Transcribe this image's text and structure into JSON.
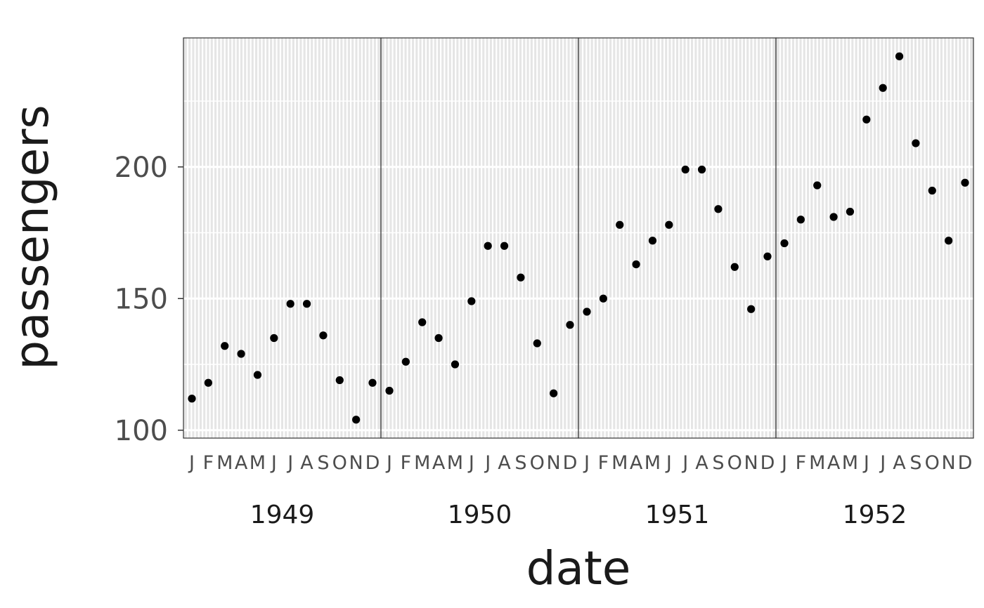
{
  "chart_data": {
    "type": "scatter",
    "title": "",
    "xlabel": "date",
    "ylabel": "passengers",
    "ylim": [
      97,
      249
    ],
    "yticks": [
      100,
      150,
      200
    ],
    "yticks_labels": [
      "100",
      "150",
      "200"
    ],
    "month_labels": [
      "J",
      "F",
      "M",
      "A",
      "M",
      "J",
      "J",
      "A",
      "S",
      "O",
      "N",
      "D"
    ],
    "years": [
      "1949",
      "1950",
      "1951",
      "1952"
    ],
    "grid": true,
    "facets": [
      {
        "year": "1949",
        "values": [
          112,
          118,
          132,
          129,
          121,
          135,
          148,
          148,
          136,
          119,
          104,
          118
        ]
      },
      {
        "year": "1950",
        "values": [
          115,
          126,
          141,
          135,
          125,
          149,
          170,
          170,
          158,
          133,
          114,
          140
        ]
      },
      {
        "year": "1951",
        "values": [
          145,
          150,
          178,
          163,
          172,
          178,
          199,
          199,
          184,
          162,
          146,
          166
        ]
      },
      {
        "year": "1952",
        "values": [
          171,
          180,
          193,
          181,
          183,
          218,
          230,
          242,
          209,
          191,
          172,
          194
        ]
      }
    ],
    "point_color": "#000000",
    "panel_background": "#e5e5e5",
    "grid_color": "#ffffff"
  }
}
